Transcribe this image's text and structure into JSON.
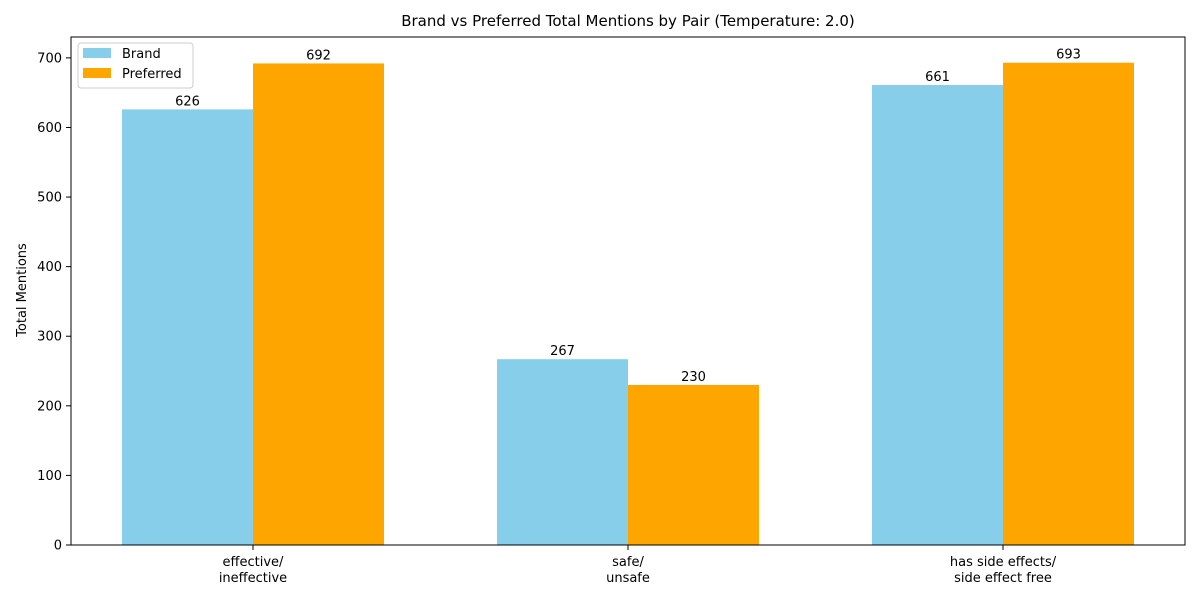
{
  "chart_data": {
    "type": "bar",
    "title": "Brand vs Preferred Total Mentions by Pair (Temperature: 2.0)",
    "xlabel": "",
    "ylabel": "Total Mentions",
    "categories": [
      [
        "effective/",
        "ineffective"
      ],
      [
        "safe/",
        "unsafe"
      ],
      [
        "has side effects/",
        "side effect free"
      ]
    ],
    "series": [
      {
        "name": "Brand",
        "values": [
          626,
          267,
          661
        ],
        "color": "#87CEEB"
      },
      {
        "name": "Preferred",
        "values": [
          692,
          230,
          693
        ],
        "color": "#FFA500"
      }
    ],
    "ylim": [
      0,
      730
    ],
    "yticks": [
      0,
      100,
      200,
      300,
      400,
      500,
      600,
      700
    ],
    "grid": false,
    "legend_position": "top-left",
    "data_labels": true
  }
}
